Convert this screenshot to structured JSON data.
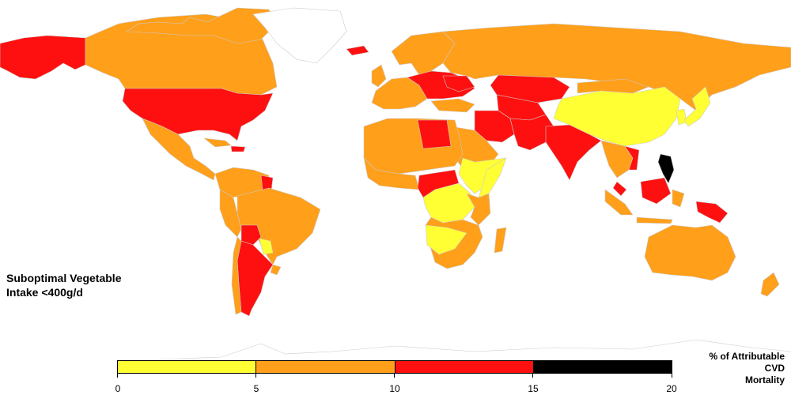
{
  "map": {
    "title": "Suboptimal Vegetable\nIntake <400g/d",
    "categories": [
      {
        "range": "0-5",
        "color": "#ffff33"
      },
      {
        "range": "5-10",
        "color": "#ff9f1a"
      },
      {
        "range": "10-15",
        "color": "#ff1010"
      },
      {
        "range": "15-20",
        "color": "#000000"
      }
    ],
    "no_data_color": "#ffffff",
    "country_values": {
      "United States": "10-15",
      "Alaska (US)": "10-15",
      "Canada": "5-10",
      "Greenland": "no data",
      "Mexico": "5-10",
      "Brazil": "5-10",
      "Argentina": "10-15",
      "Bolivia": "10-15",
      "Guyana": "10-15",
      "Paraguay": "0-5",
      "Russia": "5-10",
      "China": "0-5",
      "Japan": "0-5",
      "India": "10-15",
      "Pakistan": "10-15",
      "Afghanistan": "10-15",
      "Iran": "10-15",
      "Kazakhstan": "10-15",
      "Philippines": "15-20",
      "Papua New Guinea": "10-15",
      "Vietnam": "10-15",
      "Malaysia": "10-15",
      "Libya": "10-15",
      "Somalia": "0-5",
      "Ethiopia": "0-5",
      "DR Congo": "0-5",
      "Zambia": "0-5",
      "Cameroon": "10-15",
      "Australia": "5-10",
      "Ukraine": "10-15",
      "Iceland": "10-15"
    }
  },
  "legend": {
    "title": "% of Attributable\nCVD\nMortality",
    "ticks": [
      "0",
      "5",
      "10",
      "15",
      "20"
    ]
  }
}
